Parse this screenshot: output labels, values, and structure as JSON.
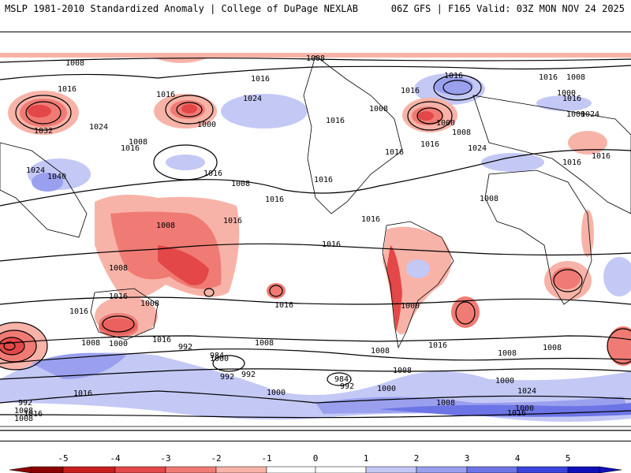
{
  "header": {
    "left_title": "MSLP 1981-2010 Standardized Anomaly | College of DuPage NEXLAB",
    "right_title": "06Z GFS | F165 Valid: 03Z MON NOV 24 2025"
  },
  "colors": {
    "neg5": "#8b0000",
    "neg4": "#c81e1e",
    "neg3": "#e34747",
    "neg2": "#f07b74",
    "neg1": "#f8b3a8",
    "zero": "#ffffff",
    "pos1": "#c4c8f5",
    "pos2": "#9aa0ee",
    "pos3": "#6c74e6",
    "pos4": "#3b44dc",
    "pos5": "#1010b8",
    "contour": "#000000",
    "coast": "#000000"
  },
  "contour_labels": [
    {
      "text": "1008"
    },
    {
      "text": "1008"
    },
    {
      "text": "1016"
    },
    {
      "text": "1016"
    },
    {
      "text": "1016"
    },
    {
      "text": "1016"
    },
    {
      "text": "1024"
    },
    {
      "text": "1008"
    },
    {
      "text": "1016"
    },
    {
      "text": "1000"
    },
    {
      "text": "1016"
    },
    {
      "text": "1008"
    },
    {
      "text": "1008"
    },
    {
      "text": "1032"
    },
    {
      "text": "1024"
    },
    {
      "text": "1016"
    },
    {
      "text": "1008"
    },
    {
      "text": "1024"
    },
    {
      "text": "1040"
    },
    {
      "text": "1016"
    },
    {
      "text": "1016"
    },
    {
      "text": "1016"
    },
    {
      "text": "1016"
    },
    {
      "text": "1000"
    },
    {
      "text": "1024"
    },
    {
      "text": "1016"
    },
    {
      "text": "1008"
    },
    {
      "text": "1000"
    },
    {
      "text": "1016"
    },
    {
      "text": "1024"
    },
    {
      "text": "1000"
    },
    {
      "text": "1016"
    },
    {
      "text": "1016"
    },
    {
      "text": "1008"
    },
    {
      "text": "1016"
    },
    {
      "text": "1016"
    },
    {
      "text": "1016"
    },
    {
      "text": "1016"
    },
    {
      "text": "1008"
    },
    {
      "text": "1008"
    },
    {
      "text": "1008"
    },
    {
      "text": "1016"
    },
    {
      "text": "1016"
    },
    {
      "text": "1000"
    },
    {
      "text": "1016"
    },
    {
      "text": "1016"
    },
    {
      "text": "1000"
    },
    {
      "text": "1008"
    },
    {
      "text": "992"
    },
    {
      "text": "984"
    },
    {
      "text": "1008"
    },
    {
      "text": "992"
    },
    {
      "text": "1000"
    },
    {
      "text": "992"
    },
    {
      "text": "1000"
    },
    {
      "text": "1008"
    },
    {
      "text": "1016"
    },
    {
      "text": "1008"
    },
    {
      "text": "984"
    },
    {
      "text": "992"
    },
    {
      "text": "1000"
    },
    {
      "text": "1008"
    },
    {
      "text": "1000"
    },
    {
      "text": "1008"
    },
    {
      "text": "1008"
    },
    {
      "text": "1016"
    },
    {
      "text": "1024"
    },
    {
      "text": "1000"
    },
    {
      "text": "992"
    },
    {
      "text": "1008"
    },
    {
      "text": "1008"
    },
    {
      "text": "1016"
    },
    {
      "text": "1016"
    }
  ],
  "colorbar": {
    "ticks": [
      "-5",
      "-4",
      "-3",
      "-2",
      "-1",
      "0",
      "1",
      "2",
      "3",
      "4",
      "5"
    ]
  }
}
